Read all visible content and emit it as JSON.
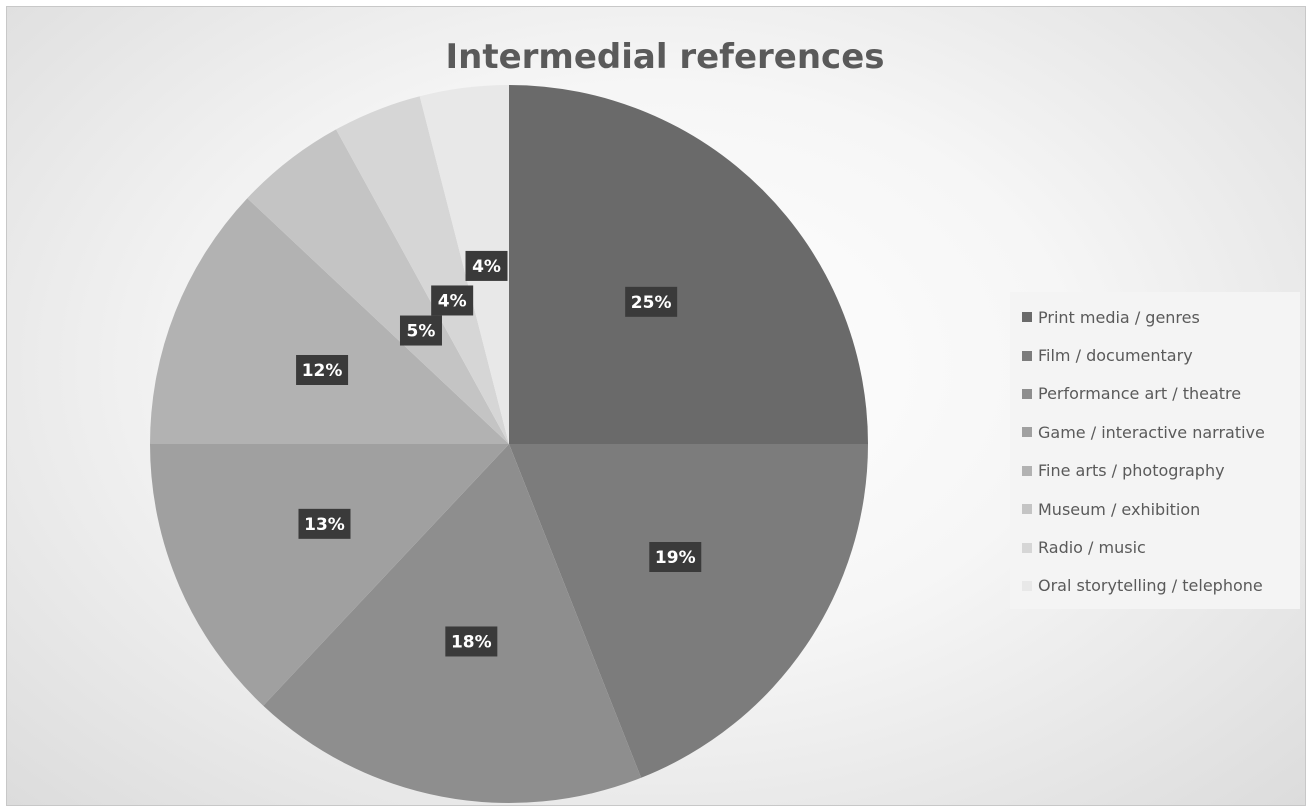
{
  "chart_data": {
    "type": "pie",
    "title": "Intermedial references",
    "categories": [
      "Print media / genres",
      "Film / documentary",
      "Performance art / theatre",
      "Game / interactive narrative",
      "Fine arts / photography",
      "Museum / exhibition",
      "Radio / music",
      "Oral storytelling / telephone"
    ],
    "values": [
      25,
      19,
      18,
      13,
      12,
      5,
      4,
      4
    ],
    "data_labels": [
      "25%",
      "19%",
      "18%",
      "13%",
      "12%",
      "5%",
      "4%",
      "4%"
    ],
    "colors": [
      "#6a6a6a",
      "#7c7c7c",
      "#8e8e8e",
      "#a0a0a0",
      "#b2b2b2",
      "#c4c4c4",
      "#d6d6d6",
      "#e8e8e8"
    ],
    "legend_position": "right"
  }
}
